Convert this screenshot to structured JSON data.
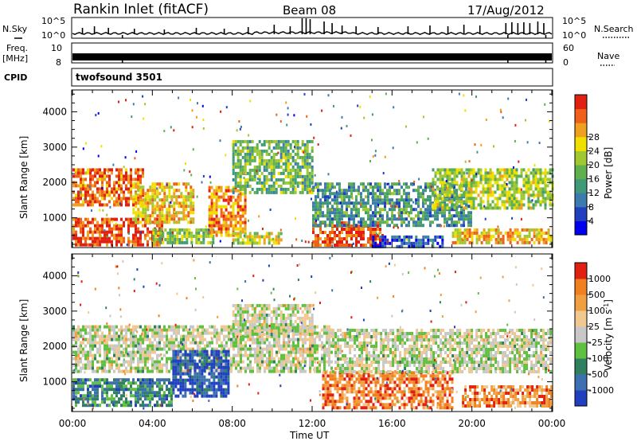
{
  "header": {
    "title": "Rankin Inlet (fitACF)",
    "beam": "Beam 08",
    "date": "17/Aug/2012"
  },
  "chart_data": [
    {
      "type": "line",
      "name": "nsky-nsearch",
      "left_label": "N.Sky",
      "right_label": "N.Search",
      "left_ticks": [
        "10^5",
        "10^0"
      ],
      "right_ticks": [
        "10^5",
        "10^0"
      ],
      "spikes": [
        {
          "t": 0.5,
          "v": 0.4
        },
        {
          "t": 1.1,
          "v": 0.5
        },
        {
          "t": 1.8,
          "v": 0.4
        },
        {
          "t": 3.1,
          "v": 0.35
        },
        {
          "t": 4.6,
          "v": 0.3
        },
        {
          "t": 6.2,
          "v": 0.4
        },
        {
          "t": 7.6,
          "v": 0.35
        },
        {
          "t": 8.8,
          "v": 0.45
        },
        {
          "t": 10.1,
          "v": 0.6
        },
        {
          "t": 10.9,
          "v": 0.5
        },
        {
          "t": 11.5,
          "v": 1.0
        },
        {
          "t": 11.7,
          "v": 1.0
        },
        {
          "t": 11.9,
          "v": 0.95
        },
        {
          "t": 12.6,
          "v": 0.8
        },
        {
          "t": 13.0,
          "v": 0.7
        },
        {
          "t": 13.5,
          "v": 0.55
        },
        {
          "t": 14.2,
          "v": 0.5
        },
        {
          "t": 15.3,
          "v": 0.45
        },
        {
          "t": 16.8,
          "v": 0.5
        },
        {
          "t": 17.9,
          "v": 0.55
        },
        {
          "t": 18.8,
          "v": 0.5
        },
        {
          "t": 19.6,
          "v": 0.6
        },
        {
          "t": 20.4,
          "v": 0.55
        },
        {
          "t": 21.7,
          "v": 0.7
        },
        {
          "t": 22.0,
          "v": 0.75
        },
        {
          "t": 22.3,
          "v": 0.7
        },
        {
          "t": 22.6,
          "v": 0.75
        },
        {
          "t": 22.9,
          "v": 0.7
        },
        {
          "t": 23.3,
          "v": 0.8
        },
        {
          "t": 23.6,
          "v": 0.7
        }
      ]
    },
    {
      "type": "line",
      "name": "freq-nave",
      "left_label": "Freq.",
      "left_unit": "[MHz]",
      "right_label": "Nave",
      "left_ticks": [
        "10",
        "8"
      ],
      "right_ticks": [
        "60",
        "0"
      ]
    },
    {
      "type": "table",
      "name": "cpid",
      "label": "CPID",
      "value": "twofsound 3501"
    },
    {
      "type": "heatmap",
      "name": "power",
      "ylabel": "Slant Range [km]",
      "yticks": [
        "4000",
        "3000",
        "2000",
        "1000"
      ],
      "ylim": [
        180,
        4550
      ],
      "xlim": [
        0,
        24
      ],
      "colorbar_label": "Power [dB]",
      "colorbar_ticks": [
        "28",
        "24",
        "20",
        "16",
        "12",
        "8",
        "4"
      ],
      "colorbar_colors": [
        "#0000ee",
        "#2040c0",
        "#3c7ab0",
        "#409a78",
        "#60b050",
        "#a0c830",
        "#f0e000",
        "#f0a020",
        "#f06018",
        "#e02010"
      ],
      "bands": [
        {
          "t0": 0.0,
          "t1": 3.5,
          "r0": 1400,
          "r1": 2400,
          "level": 0.85
        },
        {
          "t0": 0.0,
          "t1": 4.5,
          "r0": 220,
          "r1": 1000,
          "level": 0.9
        },
        {
          "t0": 3.0,
          "t1": 6.0,
          "r0": 900,
          "r1": 2000,
          "level": 0.7
        },
        {
          "t0": 4.0,
          "t1": 7.0,
          "r0": 300,
          "r1": 700,
          "level": 0.5
        },
        {
          "t0": 6.8,
          "t1": 8.6,
          "r0": 500,
          "r1": 1900,
          "level": 0.8
        },
        {
          "t0": 8.0,
          "t1": 12.0,
          "r0": 1700,
          "r1": 3200,
          "level": 0.45
        },
        {
          "t0": 8.0,
          "t1": 10.5,
          "r0": 260,
          "r1": 600,
          "level": 0.6
        },
        {
          "t0": 12.0,
          "t1": 15.5,
          "r0": 260,
          "r1": 900,
          "level": 0.88
        },
        {
          "t0": 12.0,
          "t1": 20.0,
          "r0": 800,
          "r1": 2000,
          "level": 0.35
        },
        {
          "t0": 15.0,
          "t1": 18.5,
          "r0": 200,
          "r1": 500,
          "level": 0.2
        },
        {
          "t0": 18.0,
          "t1": 24.0,
          "r0": 1300,
          "r1": 2400,
          "level": 0.55
        },
        {
          "t0": 19.0,
          "t1": 24.0,
          "r0": 250,
          "r1": 700,
          "level": 0.7
        }
      ]
    },
    {
      "type": "heatmap",
      "name": "velocity",
      "ylabel": "Slant Range [km]",
      "yticks": [
        "4000",
        "3000",
        "2000",
        "1000"
      ],
      "ylim": [
        180,
        4550
      ],
      "xlim": [
        0,
        24
      ],
      "xlabel": "Time UT",
      "xticks": [
        "00:00",
        "04:00",
        "08:00",
        "12:00",
        "16:00",
        "20:00",
        "00:00"
      ],
      "colorbar_label": "Velocity [m s^-1]",
      "colorbar_ticks": [
        "1000",
        "500",
        "100",
        "25",
        "-25",
        "-100",
        "-500",
        "-1000"
      ],
      "colorbar_colors": [
        "#2040c0",
        "#3c70b0",
        "#308060",
        "#60c040",
        "#c8c8c8",
        "#f0c890",
        "#f0a040",
        "#f08020",
        "#e02010"
      ],
      "bands": [
        {
          "t0": 0.0,
          "t1": 13.0,
          "r0": 1300,
          "r1": 2600,
          "level": 0.5
        },
        {
          "t0": 8.0,
          "t1": 12.0,
          "r0": 2300,
          "r1": 3200,
          "level": 0.5
        },
        {
          "t0": 0.0,
          "t1": 5.0,
          "r0": 350,
          "r1": 1100,
          "level": 0.25
        },
        {
          "t0": 5.0,
          "t1": 7.8,
          "r0": 600,
          "r1": 1900,
          "level": 0.1
        },
        {
          "t0": 12.5,
          "t1": 19.0,
          "r0": 250,
          "r1": 1300,
          "level": 0.8
        },
        {
          "t0": 13.0,
          "t1": 24.0,
          "r0": 1300,
          "r1": 2500,
          "level": 0.5
        },
        {
          "t0": 19.5,
          "t1": 24.0,
          "r0": 300,
          "r1": 900,
          "level": 0.78
        }
      ]
    }
  ]
}
